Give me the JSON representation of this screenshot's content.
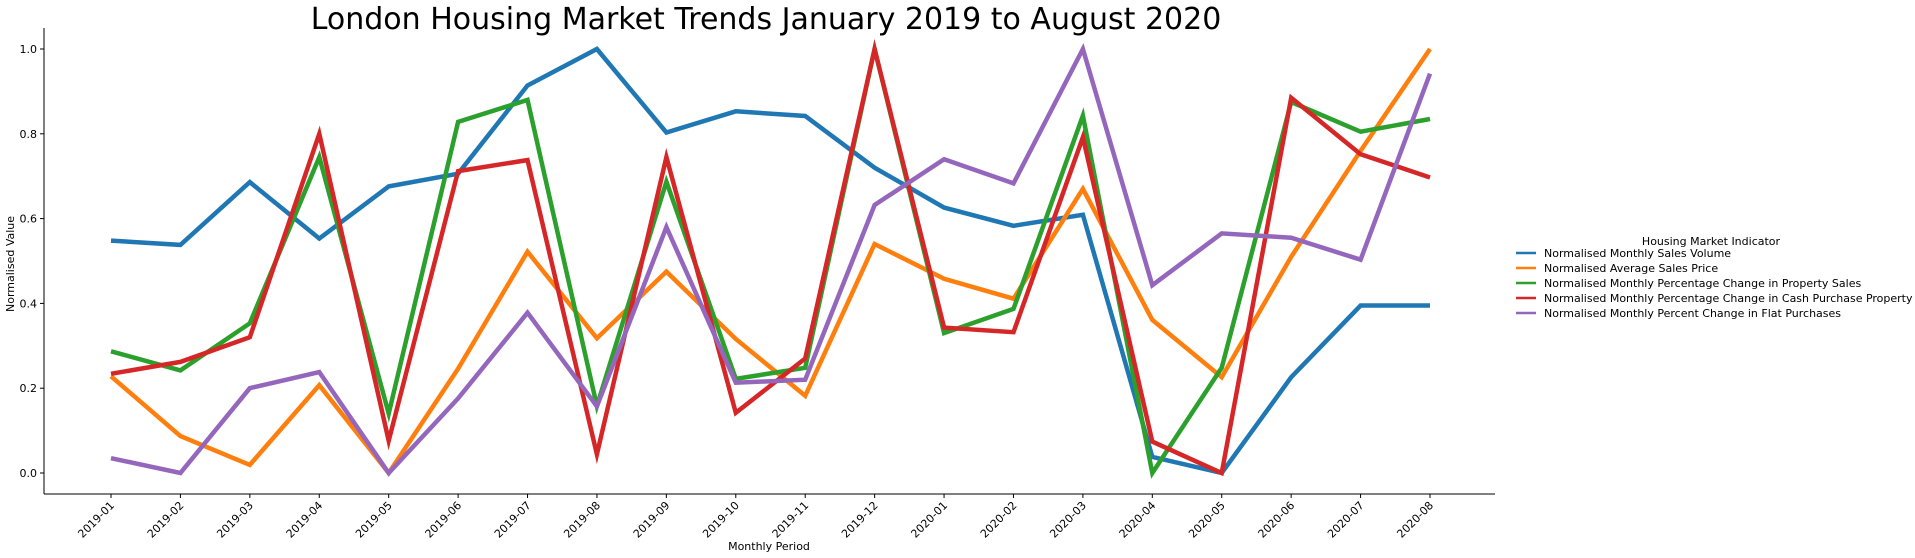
{
  "chart_data": {
    "type": "line",
    "title": "London Housing Market Trends January 2019 to August 2020",
    "xlabel": "Monthly Period",
    "ylabel": "Normalised Value",
    "ylim": [
      -0.05,
      1.05
    ],
    "yticks": [
      "0.0",
      "0.2",
      "0.4",
      "0.6",
      "0.8",
      "1.0"
    ],
    "grid": false,
    "legend_title": "Housing Market Indicator",
    "legend_position": "right",
    "categories": [
      "2019-01",
      "2019-02",
      "2019-03",
      "2019-04",
      "2019-05",
      "2019-06",
      "2019-07",
      "2019-08",
      "2019-09",
      "2019-10",
      "2019-11",
      "2019-12",
      "2020-01",
      "2020-02",
      "2020-03",
      "2020-04",
      "2020-05",
      "2020-06",
      "2020-07",
      "2020-08"
    ],
    "series": [
      {
        "name": "Normalised Monthly Sales Volume",
        "color": "#1f77b4",
        "values": [
          0.548,
          0.538,
          0.686,
          0.553,
          0.676,
          0.706,
          0.914,
          1.0,
          0.803,
          0.853,
          0.842,
          0.72,
          0.626,
          0.583,
          0.609,
          0.038,
          0.0,
          0.226,
          0.395,
          0.395
        ]
      },
      {
        "name": "Normalised Average Sales Price",
        "color": "#ff7f0e",
        "values": [
          0.228,
          0.087,
          0.019,
          0.207,
          0.0,
          0.246,
          0.522,
          0.318,
          0.475,
          0.316,
          0.182,
          0.54,
          0.458,
          0.411,
          0.67,
          0.361,
          0.226,
          0.51,
          0.76,
          1.0
        ]
      },
      {
        "name": "Normalised Monthly Percentage Change in Property Sales",
        "color": "#2ca02c",
        "values": [
          0.287,
          0.242,
          0.353,
          0.745,
          0.14,
          0.828,
          0.88,
          0.158,
          0.687,
          0.222,
          0.248,
          1.0,
          0.33,
          0.387,
          0.843,
          0.0,
          0.248,
          0.875,
          0.805,
          0.835
        ]
      },
      {
        "name": "Normalised Monthly Percentage Change in Cash Purchase Property Sales",
        "color": "#d62728",
        "values": [
          0.234,
          0.262,
          0.32,
          0.8,
          0.076,
          0.712,
          0.738,
          0.044,
          0.745,
          0.142,
          0.27,
          1.0,
          0.343,
          0.332,
          0.792,
          0.074,
          0.0,
          0.885,
          0.752,
          0.697
        ]
      },
      {
        "name": "Normalised Monthly Percent Change in Flat Purchases",
        "color": "#9467bd",
        "values": [
          0.035,
          0.0,
          0.2,
          0.238,
          0.0,
          0.176,
          0.378,
          0.157,
          0.58,
          0.213,
          0.22,
          0.632,
          0.74,
          0.683,
          1.0,
          0.443,
          0.565,
          0.555,
          0.503,
          0.942
        ]
      }
    ]
  }
}
